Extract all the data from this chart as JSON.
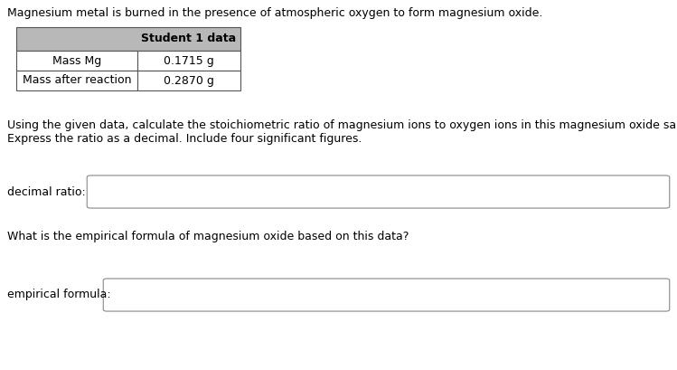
{
  "title_text": "Magnesium metal is burned in the presence of atmospheric oxygen to form magnesium oxide.",
  "table_header": "Student 1 data",
  "table_rows": [
    [
      "Mass Mg",
      "0.1715 g"
    ],
    [
      "Mass after reaction",
      "0.2870 g"
    ]
  ],
  "question1_line1": "Using the given data, calculate the stoichiometric ratio of magnesium ions to oxygen ions in this magnesium oxide sample.",
  "question1_line2": "Express the ratio as a decimal. Include four significant figures.",
  "label1": "decimal ratio:",
  "question2": "What is the empirical formula of magnesium oxide based on this data?",
  "label2": "empirical formula:",
  "bg_color": "#ffffff",
  "table_header_bg": "#b8b8b8",
  "table_border_color": "#555555",
  "text_color": "#000000",
  "input_box_color": "#ffffff",
  "input_box_border": "#888888",
  "font_size": 9.0,
  "header_font_size": 9.0
}
